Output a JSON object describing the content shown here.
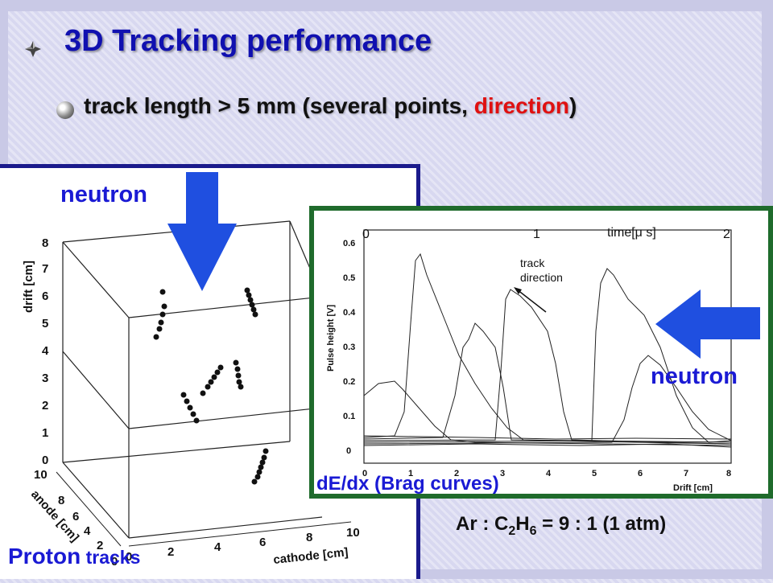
{
  "slide": {
    "title": "3D Tracking performance",
    "subtitle_prefix": "track length > 5 mm (several points, ",
    "subtitle_highlight": "direction",
    "subtitle_suffix": ")",
    "colors": {
      "title": "#1010b0",
      "highlight": "#e01010",
      "label_blue": "#1a1ad4",
      "arrow_blue": "#1f4fe0"
    }
  },
  "left_plot": {
    "neutron_label": "neutron",
    "proton_label_big": "Proton",
    "proton_label_small": " tracks",
    "drift_axis": {
      "label": "drift [cm]",
      "ticks": [
        "0",
        "1",
        "2",
        "3",
        "4",
        "5",
        "6",
        "7",
        "8"
      ]
    },
    "anode_axis": {
      "label": "anode [cm]",
      "ticks": [
        "10",
        "8",
        "6",
        "4",
        "2",
        "0"
      ]
    },
    "cathode_axis": {
      "label": "cathode [cm]",
      "ticks": [
        "0",
        "2",
        "4",
        "6",
        "8",
        "10"
      ]
    }
  },
  "right_plot": {
    "dedx_label": "dE/dx (Brag curves)",
    "neutron_label": "neutron",
    "time_label": "time[μ s]",
    "time_ticks": [
      "0",
      "1",
      "2"
    ],
    "annotation_line1": "track",
    "annotation_line2": "direction",
    "y_label": "Pulse height [V]",
    "y_ticks": [
      "0",
      "0.1",
      "0.2",
      "0.3",
      "0.4",
      "0.5",
      "0.6"
    ],
    "x_label": "Drift [cm]",
    "x_ticks": [
      "0",
      "1",
      "2",
      "3",
      "4",
      "5",
      "6",
      "7",
      "8"
    ]
  },
  "footer": {
    "formula_prefix": "Ar : C",
    "formula_sub1": "2",
    "formula_mid": "H",
    "formula_sub2": "6",
    "formula_suffix": " = 9 : 1 (1 atm)"
  }
}
